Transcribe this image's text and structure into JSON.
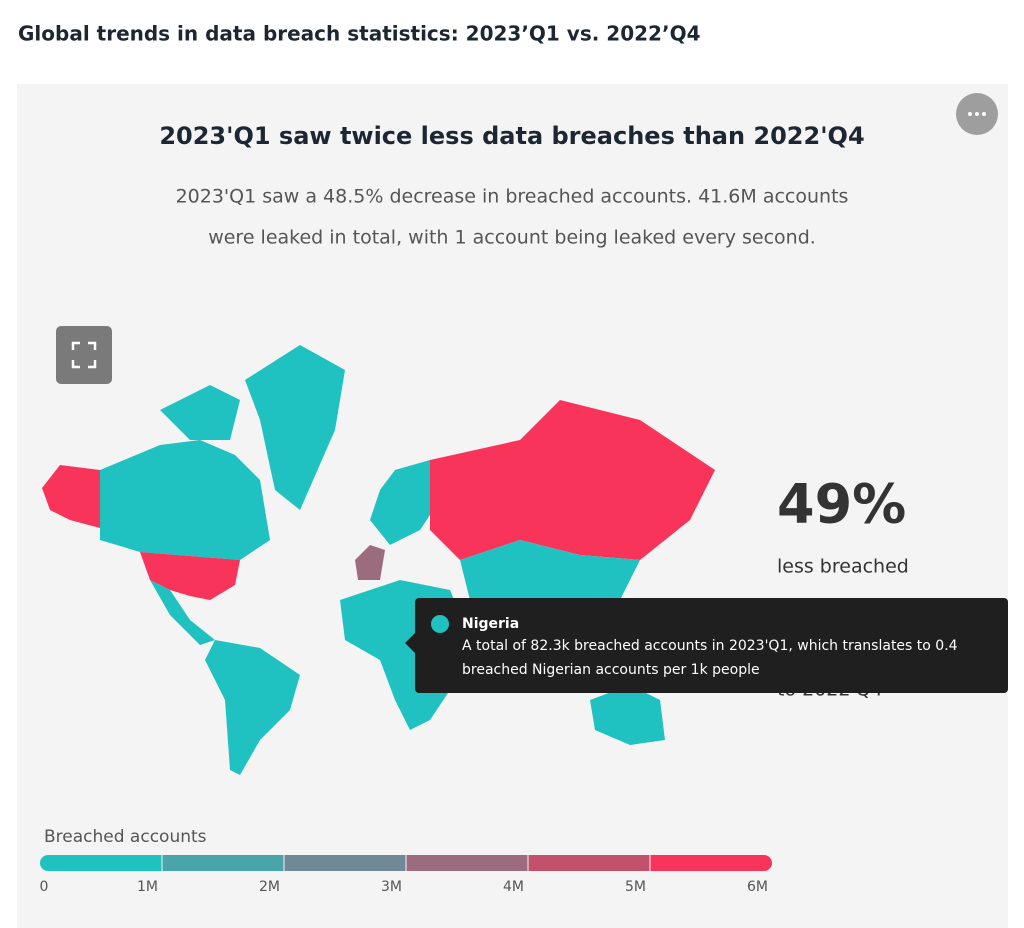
{
  "header": {
    "title": "Global trends in data breach statistics: 2023’Q1 vs. 2022’Q4"
  },
  "card": {
    "title": "2023'Q1 saw twice less data breaches than 2022'Q4",
    "subtitle": [
      "2023'Q1 saw a 48.5% decrease in breached accounts. 41.6M accounts",
      "were leaked in total, with 1 account being leaked every second."
    ]
  },
  "stat": {
    "value": "49%",
    "label": "less breached",
    "note": "to 2022'Q4"
  },
  "tooltip": {
    "country": "Nigeria",
    "text": [
      "A total of 82.3k breached accounts in 2023'Q1, which translates to 0.4",
      "breached Nigerian accounts per 1k people"
    ]
  },
  "legend": {
    "title": "Breached accounts",
    "ticks": [
      "0",
      "1M",
      "2M",
      "3M",
      "4M",
      "5M",
      "6M"
    ],
    "colors": [
      "#20c1c1",
      "#4aa5ab",
      "#6f8a96",
      "#9a6c7e",
      "#c2516b",
      "#f9345a"
    ]
  }
}
